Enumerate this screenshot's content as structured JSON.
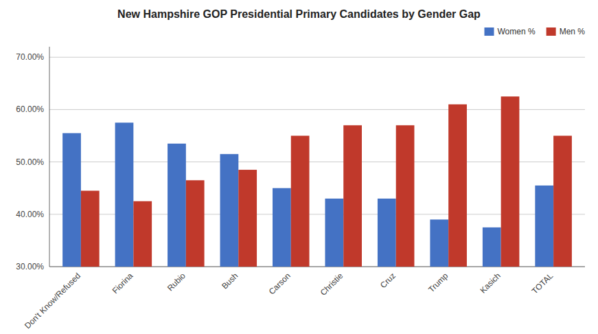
{
  "chart_data": {
    "type": "bar",
    "title": "New Hampshire GOP Presidential Primary Candidates by Gender Gap",
    "categories": [
      "Don't Know/Refused",
      "Fiorina",
      "Rubio",
      "Bush",
      "Carson",
      "Christie",
      "Cruz",
      "Trump",
      "Kasich",
      "TOTAL"
    ],
    "series": [
      {
        "name": "Women %",
        "color": "#4472C4",
        "values": [
          0.555,
          0.575,
          0.535,
          0.515,
          0.45,
          0.43,
          0.43,
          0.39,
          0.375,
          0.455
        ]
      },
      {
        "name": "Men %",
        "color": "#C0392B",
        "values": [
          0.445,
          0.425,
          0.465,
          0.485,
          0.55,
          0.57,
          0.57,
          0.61,
          0.625,
          0.55
        ]
      }
    ],
    "ylim": [
      0.3,
      0.72
    ],
    "yticks": [
      {
        "value": 0.3,
        "label": "30.00%"
      },
      {
        "value": 0.4,
        "label": "40.00%"
      },
      {
        "value": 0.5,
        "label": "50.00%"
      },
      {
        "value": 0.6,
        "label": "60.00%"
      },
      {
        "value": 0.7,
        "label": "70.00%"
      }
    ],
    "grid": true,
    "legend": "upper right"
  }
}
